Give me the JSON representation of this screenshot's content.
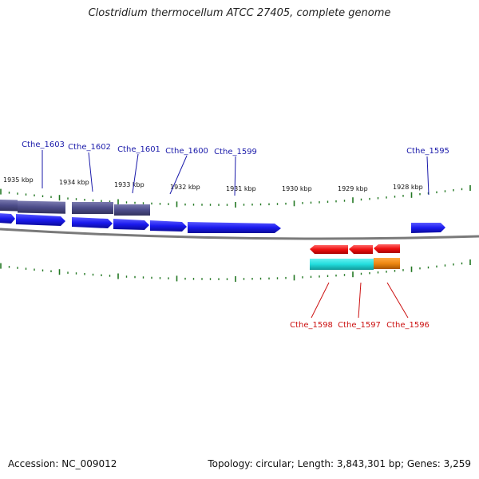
{
  "title": "Clostridium thermocellum ATCC 27405, complete genome",
  "footer": {
    "accession": "Accession: NC_009012",
    "summary": "Topology: circular; Length: 3,843,301 bp; Genes: 3,259"
  },
  "ruler_labels": [
    "1935 kbp",
    "1934 kbp",
    "1933 kbp",
    "1932 kbp",
    "1931 kbp",
    "1930 kbp",
    "1929 kbp",
    "1928 kbp"
  ],
  "forward_labels": [
    "Cthe_1603",
    "Cthe_1602",
    "Cthe_1601",
    "Cthe_1600",
    "Cthe_1599",
    "Cthe_1595"
  ],
  "reverse_labels": [
    "Cthe_1598",
    "Cthe_1597",
    "Cthe_1596"
  ],
  "colors": {
    "forward_gene": "#1a1aee",
    "forward_label": "#1a1aaa",
    "reverse_gene": "#ee1111",
    "reverse_label": "#cc1111",
    "forward_feature": "#4d4d8a",
    "cyan_feature": "#22dddd",
    "orange_feature": "#ee8811",
    "tick": "#227722",
    "backbone": "#7a7a7a"
  }
}
